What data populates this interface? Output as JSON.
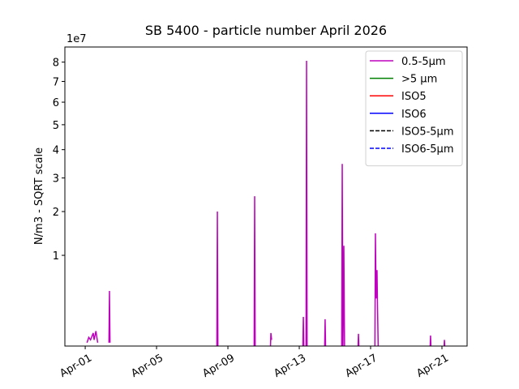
{
  "chart_data": {
    "type": "line",
    "title": "SB 5400 - particle number April 2026",
    "y_label": "N/m3 - SQRT scale",
    "y_offset_label": "1e7",
    "y_scale": "sqrt",
    "xlim": [
      -0.14,
      22.41
    ],
    "ylim": [
      200000,
      88300000
    ],
    "xticks": [
      {
        "value": 1,
        "label": "Apr-01"
      },
      {
        "value": 5,
        "label": "Apr-05"
      },
      {
        "value": 9,
        "label": "Apr-09"
      },
      {
        "value": 13,
        "label": "Apr-13"
      },
      {
        "value": 17,
        "label": "Apr-17"
      },
      {
        "value": 21,
        "label": "Apr-21"
      }
    ],
    "yticks": [
      {
        "value": 10000000,
        "label": "1"
      },
      {
        "value": 20000000,
        "label": "2"
      },
      {
        "value": 30000000,
        "label": "3"
      },
      {
        "value": 40000000,
        "label": "4"
      },
      {
        "value": 50000000,
        "label": "5"
      },
      {
        "value": 60000000,
        "label": "6"
      },
      {
        "value": 70000000,
        "label": "7"
      },
      {
        "value": 80000000,
        "label": "8"
      }
    ],
    "legend": "upper right",
    "series": [
      {
        "name": "0.5-5µm",
        "color": "#bf00bf",
        "dash": false,
        "x": [
          1.1,
          1.2,
          1.3,
          1.45,
          1.5,
          1.6,
          1.7,
          null,
          2.33,
          2.36,
          2.39,
          null,
          8.38,
          8.41,
          8.44,
          null,
          10.47,
          10.5,
          10.53,
          null,
          11.38,
          11.41,
          11.45,
          null,
          13.2,
          13.23,
          13.26,
          null,
          13.38,
          13.41,
          13.44,
          null,
          14.42,
          14.45,
          14.48,
          null,
          15.38,
          15.41,
          15.45,
          15.5,
          15.54,
          null,
          16.29,
          16.32,
          16.35,
          null,
          17.24,
          17.27,
          17.31,
          17.36,
          17.39,
          17.43,
          null,
          20.33,
          20.36,
          20.39,
          null,
          21.11,
          21.14,
          21.17
        ],
        "values": [
          300000,
          500000,
          400000,
          700000,
          400000,
          800000,
          300000,
          null,
          300000,
          4400000,
          300000,
          null,
          100000,
          20000000,
          100000,
          null,
          100000,
          24300000,
          100000,
          null,
          100000,
          700000,
          400000,
          null,
          100000,
          1740000,
          100000,
          null,
          100000,
          80700000,
          100000,
          null,
          100000,
          1560000,
          100000,
          null,
          100000,
          34800000,
          100000,
          11900000,
          100000,
          null,
          100000,
          660000,
          100000,
          null,
          100000,
          14600000,
          3500000,
          7400000,
          2300000,
          100000,
          null,
          100000,
          580000,
          100000,
          null,
          100000,
          400000,
          100000
        ]
      },
      {
        "name": ">5 µm",
        "color": "#008000",
        "dash": false,
        "x": [],
        "values": []
      },
      {
        "name": "ISO5",
        "color": "#ff0000",
        "dash": false,
        "x": [],
        "values": []
      },
      {
        "name": "ISO6",
        "color": "#0000ff",
        "dash": false,
        "x": [],
        "values": []
      },
      {
        "name": "ISO5-5µm",
        "color": "#000000",
        "dash": true,
        "x": [],
        "values": []
      },
      {
        "name": "ISO6-5µm",
        "color": "#0000ff",
        "dash": true,
        "x": [],
        "values": []
      }
    ]
  }
}
